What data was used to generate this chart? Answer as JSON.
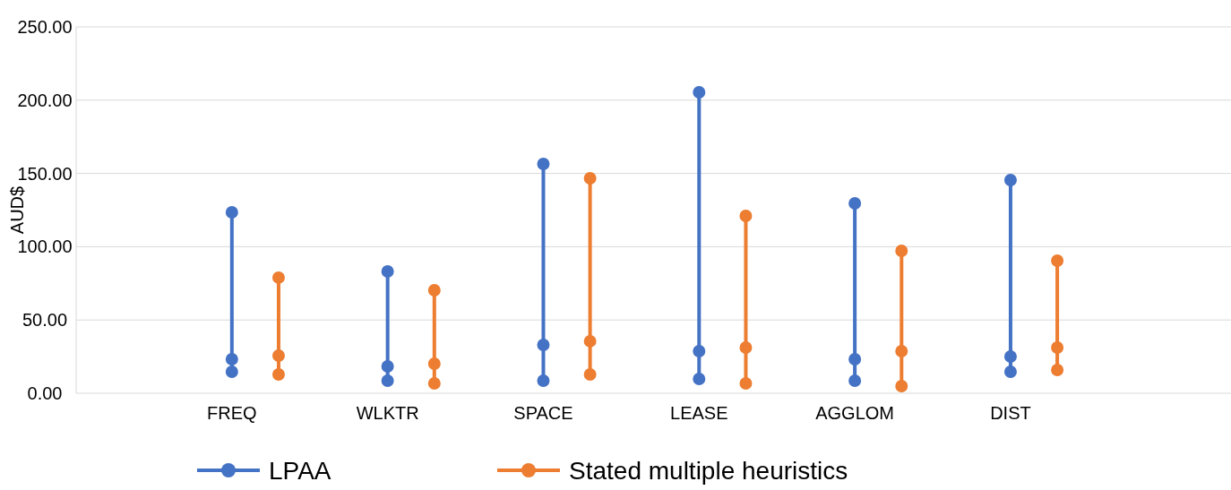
{
  "chart_data": {
    "type": "line",
    "ylabel": "AUD$",
    "categories": [
      "FREQ",
      "WLKTR",
      "SPACE",
      "LEASE",
      "AGGLOM",
      "DIST"
    ],
    "ylim": [
      0,
      250
    ],
    "yticks": [
      {
        "value": 0,
        "label": "0.00"
      },
      {
        "value": 50,
        "label": "50.00"
      },
      {
        "value": 100,
        "label": "100.00"
      },
      {
        "value": 150,
        "label": "150.00"
      },
      {
        "value": 200,
        "label": "200.00"
      },
      {
        "value": 250,
        "label": "250.00"
      }
    ],
    "grid": "y",
    "legend": "bottom",
    "marker": "circle",
    "series": [
      {
        "name": "LPAA",
        "color": "#4472c4",
        "x": [
          "FREQ",
          "FREQ",
          "FREQ",
          "FREQ",
          "WLKTR",
          "WLKTR",
          "WLKTR",
          "WLKTR",
          "SPACE",
          "SPACE",
          "SPACE",
          "SPACE",
          "LEASE",
          "LEASE",
          "LEASE",
          "LEASE",
          "AGGLOM",
          "AGGLOM",
          "AGGLOM",
          "AGGLOM",
          "DIST",
          "DIST",
          "DIST"
        ],
        "values": [
          14.7,
          23.2,
          123.5,
          null,
          8.6,
          18.3,
          83.1,
          null,
          8.6,
          33,
          156.5,
          null,
          9.8,
          28.7,
          205.4,
          null,
          8.6,
          23.2,
          129.6,
          null,
          14.7,
          25.1,
          145.5
        ]
      },
      {
        "name": "Stated multiple heuristics",
        "color": "#ed7d31",
        "x": [
          "FREQ",
          "FREQ",
          "FREQ",
          "FREQ",
          "WLKTR",
          "WLKTR",
          "WLKTR",
          "WLKTR",
          "SPACE",
          "SPACE",
          "SPACE",
          "SPACE",
          "LEASE",
          "LEASE",
          "LEASE",
          "LEASE",
          "AGGLOM",
          "AGGLOM",
          "AGGLOM",
          "AGGLOM",
          "DIST",
          "DIST",
          "DIST"
        ],
        "values": [
          12.8,
          25.7,
          78.9,
          null,
          6.7,
          20.2,
          70.3,
          null,
          12.8,
          35.5,
          146.7,
          null,
          6.7,
          31.2,
          121,
          null,
          4.9,
          28.7,
          97.2,
          null,
          15.9,
          31.2,
          90.5
        ]
      }
    ]
  }
}
